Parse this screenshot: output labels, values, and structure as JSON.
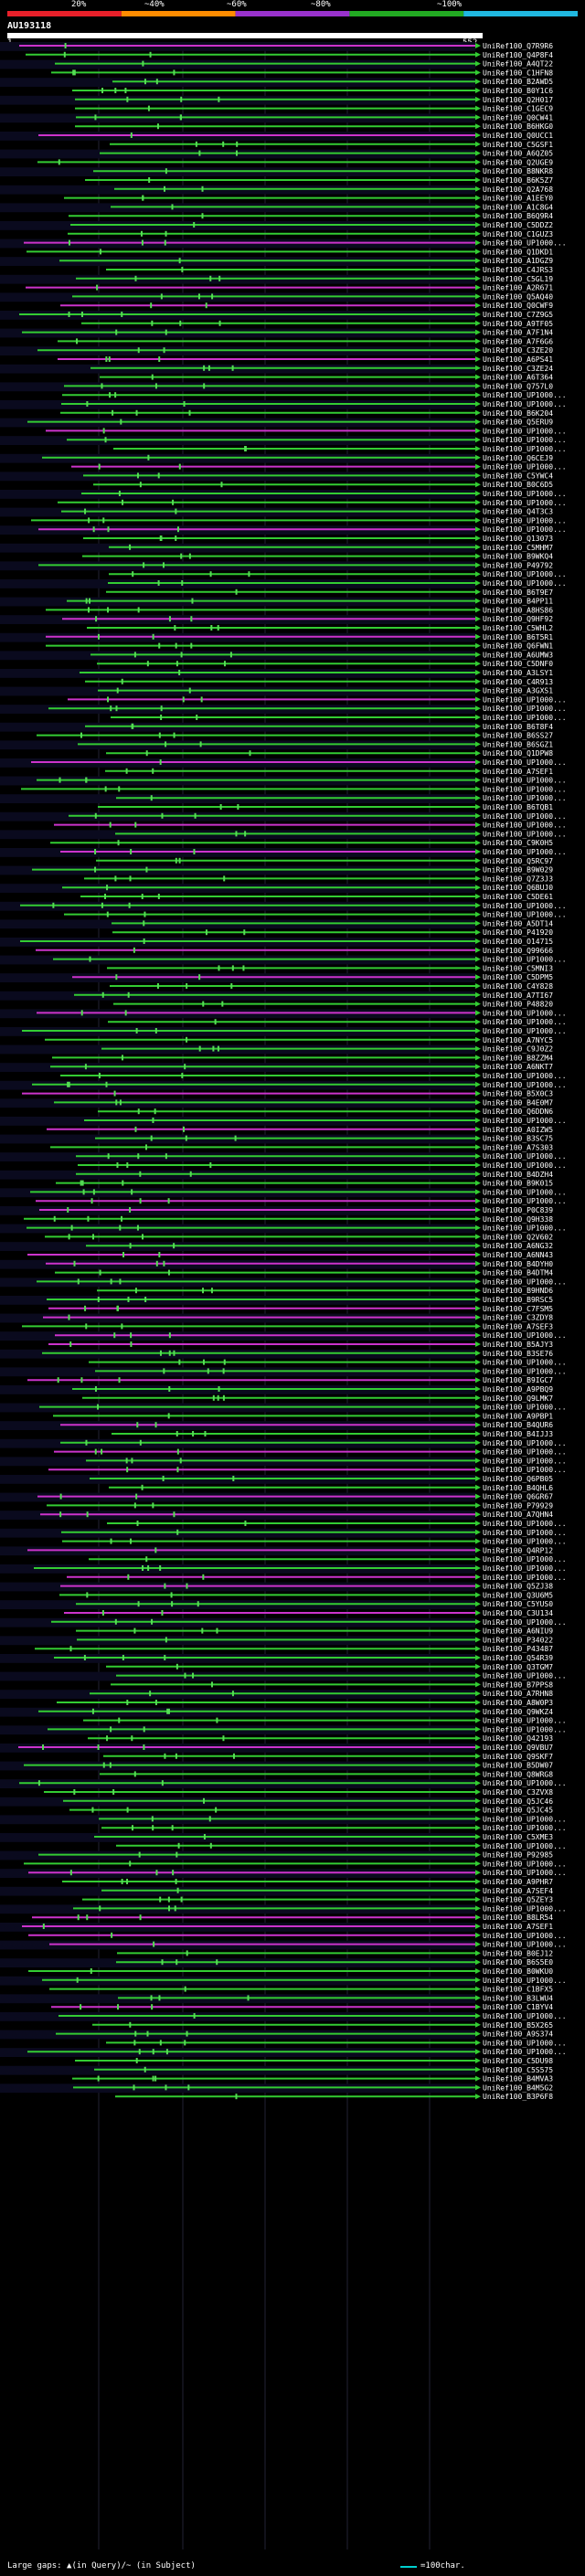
{
  "legend": {
    "labels": [
      "20%",
      "~40%",
      "~60%",
      "~80%",
      "~100%"
    ],
    "colors": [
      "#e8202a",
      "#ff8c00",
      "#9932cc",
      "#22aa22",
      "#20b8e0"
    ]
  },
  "query": {
    "id": "AU193118",
    "start": "1",
    "end": "552"
  },
  "colors": {
    "match_line": "#33cc33",
    "gap_line": "#cc33cc",
    "guide_line": "#ffffff",
    "row_band": "#0a0a1e",
    "scale_bar": "#00cfcf"
  },
  "hits": [
    "UniRef100_Q7R9R6",
    "UniRef100_Q4P8F4",
    "UniRef100_A4QT22",
    "UniRef100_C1HFN8",
    "UniRef100_B2AWD5",
    "UniRef100_B0Y1C6",
    "UniRef100_Q2H017",
    "UniRef100_C1GEC9",
    "UniRef100_Q0CW41",
    "UniRef100_B6HKG0",
    "UniRef100_Q0UCC1",
    "UniRef100_C5GSF1",
    "UniRef100_A6QZ05",
    "UniRef100_Q2UGE9",
    "UniRef100_B8NKR8",
    "UniRef100_B6K5Z7",
    "UniRef100_Q2A768",
    "UniRef100_A1EEY0",
    "UniRef100_A1C8G4",
    "UniRef100_B6Q9R4",
    "UniRef100_C5DDZ2",
    "UniRef100_C1GUZ3",
    "UniRef100_UP1000...",
    "UniRef100_Q1DKD1",
    "UniRef100_A1DGZ9",
    "UniRef100_C4JRS3",
    "UniRef100_C5GL19",
    "UniRef100_A2R671",
    "UniRef100_Q5AQ40",
    "UniRef100_Q0CWF9",
    "UniRef100_C7Z9G5",
    "UniRef100_A9TF05",
    "UniRef100_A7F1N4",
    "UniRef100_A7F6G6",
    "UniRef100_C3ZE20",
    "UniRef100_A6PS41",
    "UniRef100_C3ZE24",
    "UniRef100_A6T364",
    "UniRef100_Q757L0",
    "UniRef100_UP1000...",
    "UniRef100_UP1000...",
    "UniRef100_B6K204",
    "UniRef100_Q5ERU9",
    "UniRef100_UP1000...",
    "UniRef100_UP1000...",
    "UniRef100_UP1000...",
    "UniRef100_Q6CEJ9",
    "UniRef100_UP1000...",
    "UniRef100_C5YWC4",
    "UniRef100_B0C6D5",
    "UniRef100_UP1000...",
    "UniRef100_UP1000...",
    "UniRef100_Q4T3C3",
    "UniRef100_UP1000...",
    "UniRef100_UP1000...",
    "UniRef100_Q13073",
    "UniRef100_C5MHM7",
    "UniRef100_B9WKQ4",
    "UniRef100_P49792",
    "UniRef100_UP1000...",
    "UniRef100_UP1000...",
    "UniRef100_B6T9E7",
    "UniRef100_B4PP11",
    "UniRef100_A8HS86",
    "UniRef100_Q9HF92",
    "UniRef100_C5WHL2",
    "UniRef100_B6T5R1",
    "UniRef100_Q6FWN1",
    "UniRef100_A6UMW3",
    "UniRef100_C5DNF0",
    "UniRef100_A3LSY1",
    "UniRef100_C4R913",
    "UniRef100_A3GXS1",
    "UniRef100_UP1000...",
    "UniRef100_UP1000...",
    "UniRef100_UP1000...",
    "UniRef100_B6T8F4",
    "UniRef100_B6SS27",
    "UniRef100_B6SGZ1",
    "UniRef100_Q1DPW8",
    "UniRef100_UP1000...",
    "UniRef100_A7SEF1",
    "UniRef100_UP1000...",
    "UniRef100_UP1000...",
    "UniRef100_UP1000...",
    "UniRef100_B6TQB1",
    "UniRef100_UP1000...",
    "UniRef100_UP1000...",
    "UniRef100_UP1000...",
    "UniRef100_C9K0H5",
    "UniRef100_UP1000...",
    "UniRef100_Q5RC97",
    "UniRef100_B9W029",
    "UniRef100_Q7Z3J3",
    "UniRef100_Q6BUJ0",
    "UniRef100_C5DE61",
    "UniRef100_UP1000...",
    "UniRef100_UP1000...",
    "UniRef100_A5DT14",
    "UniRef100_P41920",
    "UniRef100_O14715",
    "UniRef100_Q99666",
    "UniRef100_UP1000...",
    "UniRef100_C5MNI3",
    "UniRef100_C5DPM5",
    "UniRef100_C4Y828",
    "UniRef100_A7TI67",
    "UniRef100_P48820",
    "UniRef100_UP1000...",
    "UniRef100_UP1000...",
    "UniRef100_UP1000...",
    "UniRef100_A7NYC5",
    "UniRef100_C9J0Z2",
    "UniRef100_B8ZZM4",
    "UniRef100_A6NKT7",
    "UniRef100_UP1000...",
    "UniRef100_UP1000...",
    "UniRef100_B5X0C3",
    "UniRef100_B4E0M7",
    "UniRef100_Q6DDN6",
    "UniRef100_UP1000...",
    "UniRef100_A0IZW5",
    "UniRef100_B3SC75",
    "UniRef100_A7S303",
    "UniRef100_UP1000...",
    "UniRef100_UP1000...",
    "UniRef100_B4DZH4",
    "UniRef100_B9K015",
    "UniRef100_UP1000...",
    "UniRef100_UP1000...",
    "UniRef100_P0C839",
    "UniRef100_Q9H338",
    "UniRef100_UP1000...",
    "UniRef100_Q2V602",
    "UniRef100_A6NG32",
    "UniRef100_A6NN43",
    "UniRef100_B4DYH0",
    "UniRef100_B4DTM4",
    "UniRef100_UP1000...",
    "UniRef100_B9HND6",
    "UniRef100_B9RSC5",
    "UniRef100_C7FSM5",
    "UniRef100_C3ZDY8",
    "UniRef100_A7SEF3",
    "UniRef100_UP1000...",
    "UniRef100_B5AJY3",
    "UniRef100_B3SE76",
    "UniRef100_UP1000...",
    "UniRef100_UP1000...",
    "UniRef100_B9IGC7",
    "UniRef100_A9PBQ9",
    "UniRef100_Q9LMK7",
    "UniRef100_UP1000...",
    "UniRef100_A9PBP1",
    "UniRef100_B4QUR6",
    "UniRef100_B4IJJ3",
    "UniRef100_UP1000...",
    "UniRef100_UP1000...",
    "UniRef100_UP1000...",
    "UniRef100_UP1000...",
    "UniRef100_Q6PB05",
    "UniRef100_B4QHL6",
    "UniRef100_Q6GR67",
    "UniRef100_P79929",
    "UniRef100_A7QHN4",
    "UniRef100_UP1000...",
    "UniRef100_UP1000...",
    "UniRef100_UP1000...",
    "UniRef100_Q4RP12",
    "UniRef100_UP1000...",
    "UniRef100_UP1000...",
    "UniRef100_UP1000...",
    "UniRef100_Q5ZJ38",
    "UniRef100_Q3U6M5",
    "UniRef100_C5YUS0",
    "UniRef100_C3U134",
    "UniRef100_UP1000...",
    "UniRef100_A6NIU9",
    "UniRef100_P34022",
    "UniRef100_P43487",
    "UniRef100_Q54R39",
    "UniRef100_Q3TGM7",
    "UniRef100_UP1000...",
    "UniRef100_B7PPS8",
    "UniRef100_A7RHN8",
    "UniRef100_A8W0P3",
    "UniRef100_Q9WKZ4",
    "UniRef100_UP1000...",
    "UniRef100_UP1000...",
    "UniRef100_Q42193",
    "UniRef100_Q9VBU7",
    "UniRef100_Q9SKF7",
    "UniRef100_B5DW07",
    "UniRef100_Q8WRG8",
    "UniRef100_UP1000...",
    "UniRef100_C3ZVX8",
    "UniRef100_Q5JC46",
    "UniRef100_Q5JC45",
    "UniRef100_UP1000...",
    "UniRef100_UP1000...",
    "UniRef100_C5XME3",
    "UniRef100_UP1000...",
    "UniRef100_P92985",
    "UniRef100_UP1000...",
    "UniRef100_UP1000...",
    "UniRef100_A9PHR7",
    "UniRef100_A7SEF4",
    "UniRef100_Q5ZEY3",
    "UniRef100_UP1000...",
    "UniRef100_B8LR54",
    "UniRef100_A7SEF1",
    "UniRef100_UP1000...",
    "UniRef100_UP1000...",
    "UniRef100_B0EJ12",
    "UniRef100_B6S5E0",
    "UniRef100_B0WKU0",
    "UniRef100_UP1000...",
    "UniRef100_C1BFX5",
    "UniRef100_B3LWU4",
    "UniRef100_C1BYV4",
    "UniRef100_UP1000...",
    "UniRef100_B5X265",
    "UniRef100_A9S374",
    "UniRef100_UP1000...",
    "UniRef100_UP1000...",
    "UniRef100_C5DU98",
    "UniRef100_C5S575",
    "UniRef100_B4MVA3",
    "UniRef100_B4M5G2",
    "UniRef100_B3P6F8"
  ],
  "footer": {
    "gaps_text": "Large gaps: ▲(in Query)/~ (in Subject)",
    "scale_text": "=100char."
  }
}
